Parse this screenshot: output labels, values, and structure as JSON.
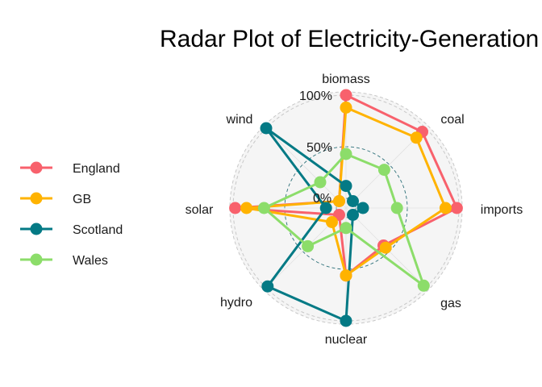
{
  "chart_data": {
    "type": "radar",
    "title": "Radar Plot of Electricity-Generation",
    "axes": [
      "biomass",
      "coal",
      "imports",
      "gas",
      "nuclear",
      "hydro",
      "solar",
      "wind"
    ],
    "grid_labels": [
      "0%",
      "50%",
      "100%"
    ],
    "ylim": [
      0,
      100
    ],
    "legend_position": "left",
    "series": [
      {
        "name": "England",
        "color": "#F8616C",
        "values": [
          100,
          95,
          98,
          42,
          56,
          0,
          98,
          0
        ]
      },
      {
        "name": "GB",
        "color": "#FFB300",
        "values": [
          88,
          87,
          87,
          45,
          56,
          10,
          87,
          0
        ]
      },
      {
        "name": "Scotland",
        "color": "#047A85",
        "values": [
          12,
          0,
          7,
          0,
          100,
          98,
          10,
          100
        ]
      },
      {
        "name": "Wales",
        "color": "#8CDD6A",
        "values": [
          43,
          43,
          40,
          97,
          10,
          43,
          70,
          26
        ]
      }
    ]
  }
}
